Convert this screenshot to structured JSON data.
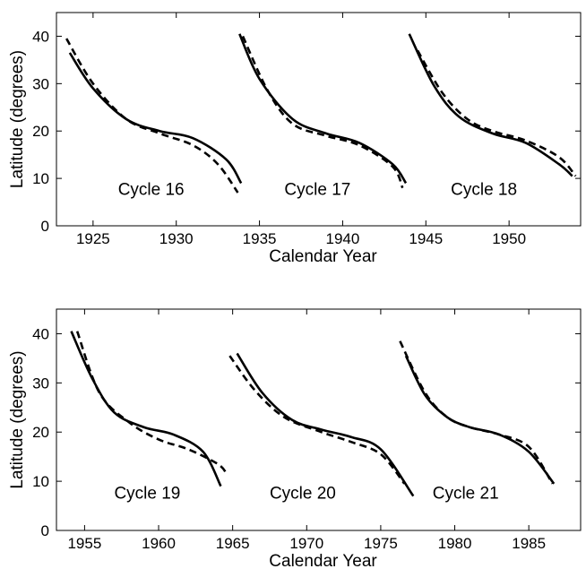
{
  "colors": {
    "line": "#000000",
    "background": "#ffffff"
  },
  "chart_data": [
    {
      "type": "line",
      "name": "top-panel",
      "xlabel": "Calendar Year",
      "ylabel": "Latitude (degrees)",
      "xlim": [
        1922.8,
        1954.3
      ],
      "ylim": [
        0,
        45
      ],
      "xticks": [
        1925,
        1930,
        1935,
        1940,
        1945,
        1950
      ],
      "yticks": [
        0,
        10,
        20,
        30,
        40
      ],
      "cycles": [
        {
          "label": "Cycle 16",
          "label_x": 1926.5,
          "label_y": 6.5,
          "solid": {
            "x": [
              1923.6,
              1925.0,
              1927.0,
              1929.0,
              1931.0,
              1933.0,
              1933.9
            ],
            "y": [
              36.5,
              29.0,
              22.5,
              20.0,
              18.5,
              14.0,
              9.0
            ]
          },
          "dashed": {
            "x": [
              1923.4,
              1925.0,
              1927.0,
              1929.0,
              1931.0,
              1932.5,
              1933.7
            ],
            "y": [
              39.5,
              30.0,
              22.5,
              19.5,
              17.0,
              13.0,
              7.0
            ]
          }
        },
        {
          "label": "Cycle 17",
          "label_x": 1936.5,
          "label_y": 6.5,
          "solid": {
            "x": [
              1933.8,
              1935.0,
              1937.0,
              1939.0,
              1941.0,
              1943.0,
              1943.8
            ],
            "y": [
              40.5,
              31.0,
              22.5,
              19.5,
              17.5,
              13.0,
              9.0
            ]
          },
          "dashed": {
            "x": [
              1934.0,
              1935.5,
              1937.0,
              1939.0,
              1941.0,
              1943.0,
              1943.6
            ],
            "y": [
              40.0,
              28.5,
              21.5,
              19.0,
              17.0,
              12.5,
              8.0
            ]
          }
        },
        {
          "label": "Cycle 18",
          "label_x": 1946.5,
          "label_y": 6.5,
          "solid": {
            "x": [
              1944.0,
              1945.5,
              1947.0,
              1949.0,
              1951.0,
              1953.0,
              1953.8
            ],
            "y": [
              40.5,
              29.5,
              23.0,
              19.5,
              17.5,
              13.0,
              10.5
            ]
          },
          "dashed": {
            "x": [
              1944.5,
              1946.0,
              1947.5,
              1949.0,
              1951.0,
              1953.0,
              1954.0
            ],
            "y": [
              37.0,
              28.0,
              22.5,
              20.0,
              18.0,
              14.5,
              10.5
            ]
          }
        }
      ]
    },
    {
      "type": "line",
      "name": "bottom-panel",
      "xlabel": "Calendar Year",
      "ylabel": "Latitude (degrees)",
      "xlim": [
        1953.1,
        1988.5
      ],
      "ylim": [
        0,
        45
      ],
      "xticks": [
        1955,
        1960,
        1965,
        1970,
        1975,
        1980,
        1985
      ],
      "yticks": [
        0,
        10,
        20,
        30,
        40
      ],
      "cycles": [
        {
          "label": "Cycle 19",
          "label_x": 1957.0,
          "label_y": 6.5,
          "solid": {
            "x": [
              1954.1,
              1955.5,
              1957.0,
              1959.0,
              1961.0,
              1963.0,
              1964.2
            ],
            "y": [
              40.5,
              31.0,
              24.0,
              21.0,
              19.5,
              16.0,
              9.0
            ]
          },
          "dashed": {
            "x": [
              1954.5,
              1956.0,
              1958.0,
              1960.0,
              1962.0,
              1964.0,
              1964.6
            ],
            "y": [
              40.5,
              28.0,
              22.0,
              18.5,
              16.5,
              13.5,
              11.5
            ]
          }
        },
        {
          "label": "Cycle 20",
          "label_x": 1967.5,
          "label_y": 6.5,
          "solid": {
            "x": [
              1965.3,
              1967.0,
              1969.0,
              1971.0,
              1973.0,
              1975.0,
              1977.2
            ],
            "y": [
              36.0,
              28.0,
              22.5,
              20.5,
              19.0,
              16.5,
              7.0
            ]
          },
          "dashed": {
            "x": [
              1964.8,
              1966.5,
              1968.5,
              1971.0,
              1973.0,
              1975.0,
              1976.6
            ],
            "y": [
              35.5,
              28.5,
              23.0,
              20.0,
              18.0,
              15.5,
              9.5
            ]
          }
        },
        {
          "label": "Cycle 21",
          "label_x": 1978.5,
          "label_y": 6.5,
          "solid": {
            "x": [
              1976.7,
              1978.0,
              1979.5,
              1981.0,
              1983.0,
              1985.0,
              1986.7
            ],
            "y": [
              35.5,
              27.5,
              23.0,
              21.0,
              19.5,
              16.0,
              9.5
            ]
          },
          "dashed": {
            "x": [
              1976.3,
              1978.0,
              1979.5,
              1981.0,
              1983.0,
              1985.0,
              1986.6
            ],
            "y": [
              38.5,
              28.0,
              23.0,
              21.0,
              19.5,
              17.0,
              9.5
            ]
          }
        }
      ]
    }
  ]
}
